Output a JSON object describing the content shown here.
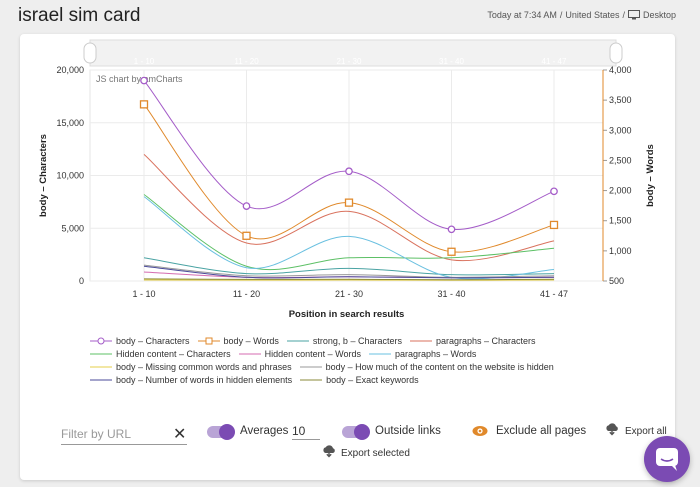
{
  "header": {
    "title": "israel sim card",
    "meta_time": "Today at 7:34 AM",
    "meta_sep1": " / ",
    "meta_location": "United States",
    "meta_sep2": " / ",
    "meta_device": "Desktop",
    "device_icon": "monitor-icon"
  },
  "chart_data": {
    "type": "line",
    "watermark": "JS chart by amCharts",
    "categories": [
      "1 - 10",
      "11 - 20",
      "21 - 30",
      "31 - 40",
      "41 - 47"
    ],
    "xlabel": "Position in search results",
    "ylabel_left": "body – Characters",
    "ylabel_right": "body – Words",
    "y_left": {
      "min": 0,
      "max": 20000,
      "ticks": [
        "0",
        "5,000",
        "10,000",
        "15,000",
        "20,000"
      ]
    },
    "y_right": {
      "min": 500,
      "max": 4000,
      "ticks": [
        "500",
        "1,000",
        "1,500",
        "2,000",
        "2,500",
        "3,000",
        "3,500",
        "4,000"
      ]
    },
    "grid": true,
    "legend_position": "bottom",
    "series": [
      {
        "name": "body – Characters",
        "axis": "left",
        "color": "#a45cc8",
        "marker": "circle",
        "values": [
          19000,
          7100,
          10400,
          4900,
          8500
        ]
      },
      {
        "name": "body – Words",
        "axis": "right",
        "color": "#e0892b",
        "marker": "square",
        "values": [
          3430,
          1250,
          1800,
          985,
          1430
        ]
      },
      {
        "name": "strong, b – Characters",
        "axis": "left",
        "color": "#4aa3a3",
        "marker": "none",
        "values": [
          2200,
          700,
          1200,
          600,
          700
        ]
      },
      {
        "name": "paragraphs – Characters",
        "axis": "left",
        "color": "#d9725e",
        "marker": "none",
        "values": [
          12000,
          3600,
          6600,
          2000,
          3800
        ]
      },
      {
        "name": "Hidden content – Characters",
        "axis": "left",
        "color": "#5dc066",
        "marker": "none",
        "values": [
          8200,
          1400,
          2200,
          2200,
          3100
        ]
      },
      {
        "name": "Hidden content – Words",
        "axis": "right",
        "color": "#d46bb0",
        "marker": "none",
        "values": [
          650,
          560,
          570,
          555,
          560
        ]
      },
      {
        "name": "paragraphs – Words",
        "axis": "right",
        "color": "#6ac0e0",
        "marker": "none",
        "values": [
          1900,
          720,
          1240,
          560,
          690
        ]
      },
      {
        "name": "body – Missing common words and phrases",
        "axis": "left",
        "color": "#e6cf4a",
        "marker": "none",
        "values": [
          100,
          80,
          90,
          70,
          90
        ]
      },
      {
        "name": "body – How much of the content on the website is hidden",
        "axis": "left",
        "color": "#9a9a9a",
        "marker": "none",
        "values": [
          1500,
          500,
          600,
          350,
          500
        ]
      },
      {
        "name": "body – Number of words in hidden elements",
        "axis": "left",
        "color": "#4a4a9a",
        "marker": "none",
        "values": [
          1400,
          350,
          400,
          300,
          350
        ]
      },
      {
        "name": "body – Exact keywords",
        "axis": "left",
        "color": "#8a8a3a",
        "marker": "none",
        "values": [
          200,
          150,
          160,
          120,
          160
        ]
      }
    ]
  },
  "controls": {
    "filter_placeholder": "Filter by URL",
    "clear_icon": "close-icon",
    "averages_label": "Averages",
    "averages_value": "10",
    "outside_links_label": "Outside links",
    "exclude_label": "Exclude all pages",
    "exclude_icon": "eye-icon",
    "export_all_label": "Export all",
    "export_selected_label": "Export selected",
    "export_icon": "cloud-download-icon"
  },
  "chat": {
    "icon": "chat-icon"
  },
  "colors": {
    "accent": "#7b4bb3",
    "toggle_track": "#b9a4d6"
  }
}
